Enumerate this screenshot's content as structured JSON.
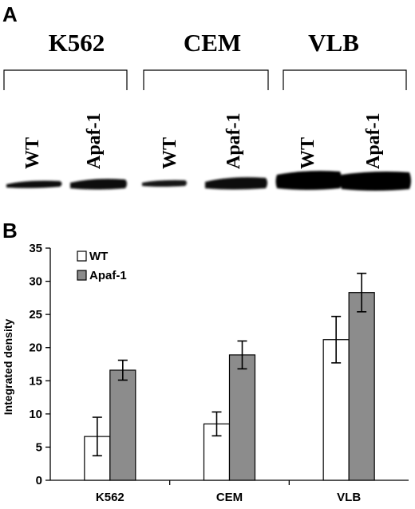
{
  "panel_a": {
    "letter": "A",
    "cell_lines": [
      "K562",
      "CEM",
      "VLB"
    ],
    "lanes": [
      "WT",
      "Apaf-1"
    ]
  },
  "panel_b": {
    "letter": "B"
  },
  "chart_data": {
    "type": "bar",
    "categories": [
      "K562",
      "CEM",
      "VLB"
    ],
    "series": [
      {
        "name": "WT",
        "values": [
          6.6,
          8.5,
          21.2
        ],
        "errors": [
          2.9,
          1.8,
          3.5
        ],
        "color": "#ffffff"
      },
      {
        "name": "Apaf-1",
        "values": [
          16.6,
          18.9,
          28.3
        ],
        "errors": [
          1.5,
          2.1,
          2.9
        ],
        "color": "#8c8c8c"
      }
    ],
    "title": "",
    "xlabel": "",
    "ylabel": "Integrated density",
    "ylim": [
      0,
      35
    ],
    "yticks": [
      "0",
      "5",
      "10",
      "15",
      "20",
      "25",
      "30",
      "35"
    ],
    "grid": false,
    "legend": "top-left",
    "error_bars": true
  }
}
